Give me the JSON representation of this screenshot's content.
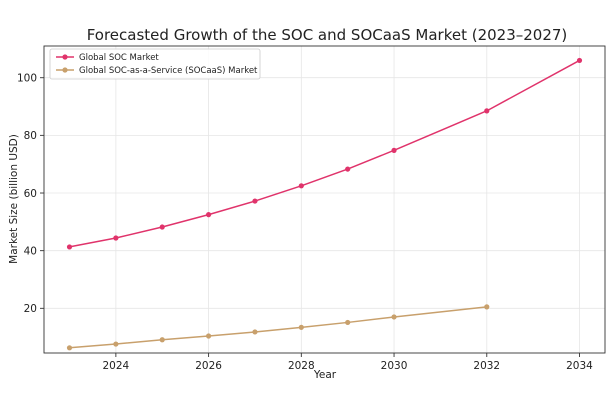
{
  "chart_data": {
    "type": "line",
    "title": "Forecasted Growth of the SOC and SOCaaS Market (2023–2027)",
    "xlabel": "Year",
    "ylabel": "Market Size (billion USD)",
    "xlim": [
      2022.45,
      2034.55
    ],
    "ylim": [
      4.5,
      111
    ],
    "xticks": [
      2024,
      2026,
      2028,
      2030,
      2032,
      2034
    ],
    "yticks": [
      20,
      40,
      60,
      80,
      100
    ],
    "grid": true,
    "legend_position": "top-left",
    "series": [
      {
        "name": "Global SOC Market",
        "color": "#e0336b",
        "x": [
          2023,
          2024,
          2025,
          2026,
          2027,
          2028,
          2029,
          2030,
          2032,
          2034
        ],
        "values": [
          41.3,
          44.4,
          48.2,
          52.5,
          57.2,
          62.5,
          68.3,
          74.8,
          88.5,
          106.0
        ]
      },
      {
        "name": "Global SOC-as-a-Service (SOCaaS) Market",
        "color": "#c8a06c",
        "x": [
          2023,
          2024,
          2025,
          2026,
          2027,
          2028,
          2029,
          2030,
          2032
        ],
        "values": [
          6.3,
          7.6,
          9.1,
          10.4,
          11.8,
          13.4,
          15.1,
          17.0,
          20.5
        ]
      }
    ]
  }
}
